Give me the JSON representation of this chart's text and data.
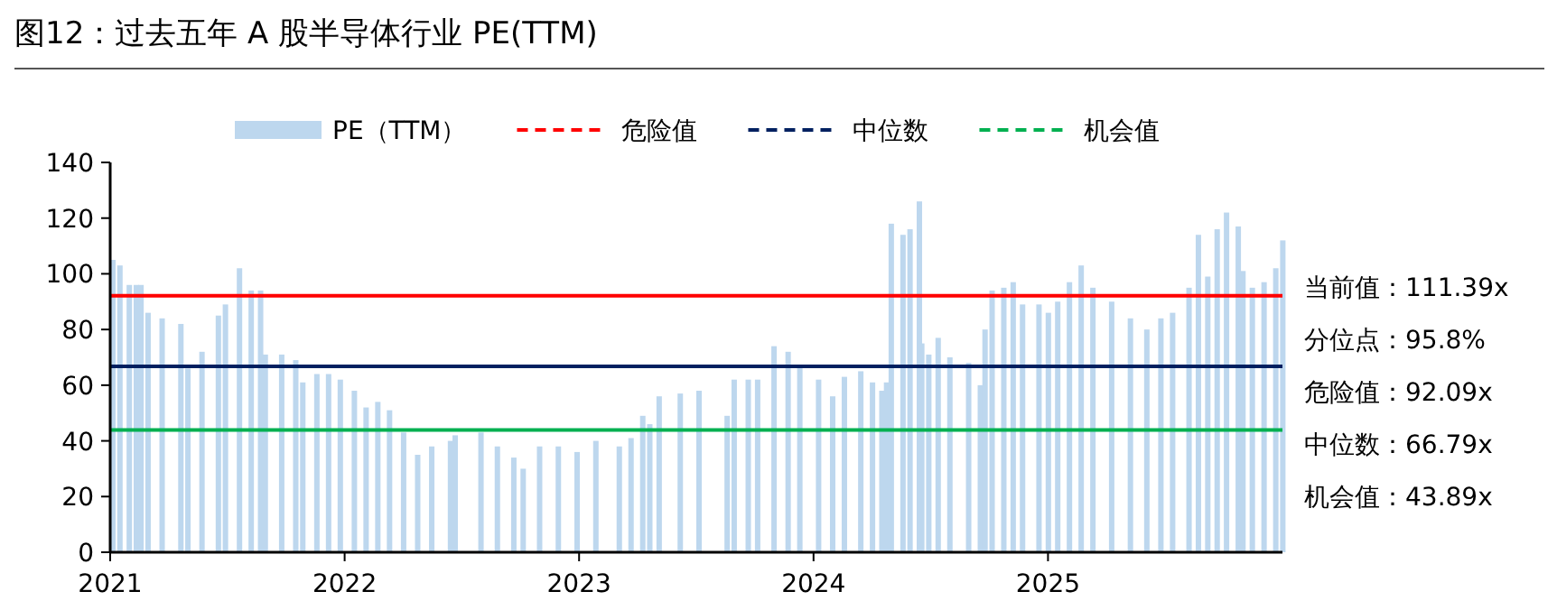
{
  "chart_data": {
    "type": "bar",
    "title": "图12：过去五年 A 股半导体行业 PE(TTM)",
    "x": [
      2021.0,
      2021.03,
      2021.07,
      2021.1,
      2021.12,
      2021.15,
      2021.21,
      2021.29,
      2021.32,
      2021.38,
      2021.45,
      2021.48,
      2021.54,
      2021.59,
      2021.63,
      2021.65,
      2021.72,
      2021.78,
      2021.81,
      2021.87,
      2021.92,
      2021.97,
      2022.03,
      2022.08,
      2022.13,
      2022.18,
      2022.24,
      2022.3,
      2022.36,
      2022.44,
      2022.46,
      2022.57,
      2022.64,
      2022.71,
      2022.75,
      2022.82,
      2022.9,
      2022.98,
      2023.06,
      2023.16,
      2023.21,
      2023.26,
      2023.29,
      2023.33,
      2023.42,
      2023.5,
      2023.62,
      2023.65,
      2023.71,
      2023.75,
      2023.82,
      2023.88,
      2023.93,
      2024.01,
      2024.07,
      2024.12,
      2024.19,
      2024.24,
      2024.28,
      2024.3,
      2024.32,
      2024.37,
      2024.4,
      2024.44,
      2024.45,
      2024.48,
      2024.52,
      2024.57,
      2024.65,
      2024.7,
      2024.72,
      2024.75,
      2024.8,
      2024.84,
      2024.88,
      2024.95,
      2024.99,
      2025.03,
      2025.08,
      2025.13,
      2025.18,
      2025.26,
      2025.34,
      2025.41,
      2025.47,
      2025.52,
      2025.59,
      2025.63,
      2025.67,
      2025.71,
      2025.75,
      2025.8,
      2025.82,
      2025.86,
      2025.91,
      2025.96,
      2025.99
    ],
    "series": [
      {
        "name": "PE（TTM）",
        "color": "#bdd7ee",
        "values": [
          105,
          103,
          96,
          96,
          96,
          86,
          84,
          82,
          66,
          72,
          85,
          89,
          102,
          94,
          94,
          71,
          71,
          69,
          61,
          64,
          64,
          62,
          58,
          52,
          54,
          51,
          43,
          35,
          38,
          40,
          42,
          43,
          38,
          34,
          30,
          38,
          38,
          36,
          40,
          38,
          41,
          49,
          46,
          56,
          57,
          58,
          49,
          62,
          62,
          62,
          74,
          72,
          67,
          62,
          56,
          63,
          65,
          61,
          58,
          61,
          118,
          114,
          116,
          126,
          75,
          71,
          77,
          70,
          68,
          60,
          80,
          94,
          95,
          97,
          89,
          89,
          86,
          90,
          97,
          103,
          95,
          90,
          84,
          80,
          84,
          86,
          95,
          114,
          99,
          116,
          122,
          117,
          101,
          95,
          97,
          102,
          112
        ]
      }
    ],
    "xlim": [
      2021,
      2026
    ],
    "xticks": [
      2021,
      2022,
      2023,
      2024,
      2025
    ],
    "ylim": [
      0,
      140
    ],
    "yticks": [
      0,
      20,
      40,
      60,
      80,
      100,
      120,
      140
    ],
    "ref_lines": [
      {
        "axis": "y",
        "value": 92.09,
        "label": "危险值",
        "color": "#ff0000"
      },
      {
        "axis": "y",
        "value": 66.79,
        "label": "中位数",
        "color": "#002060"
      },
      {
        "axis": "y",
        "value": 43.89,
        "label": "机会值",
        "color": "#00b050"
      }
    ],
    "annotations": [
      "当前值：111.39x",
      "分位点：95.8%",
      "危险值：92.09x",
      "中位数：66.79x",
      "机会值：43.89x"
    ],
    "legend": "top",
    "grid": false
  }
}
